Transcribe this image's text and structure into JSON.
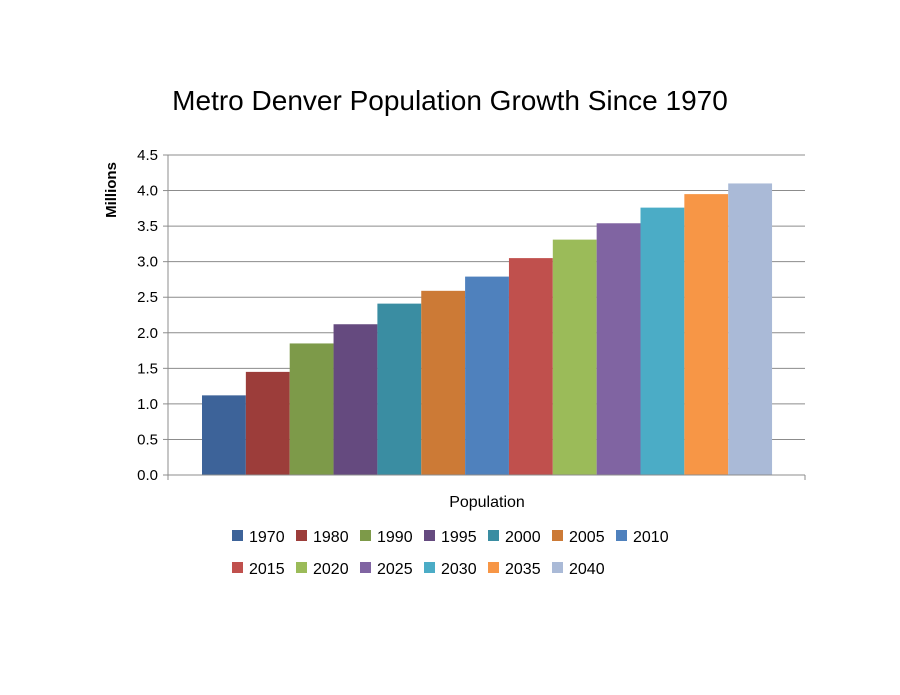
{
  "chart_data": {
    "type": "bar",
    "title": "Metro Denver Population Growth Since 1970",
    "xlabel": "Population",
    "ylabel": "Millions",
    "ylim": [
      0,
      4.5
    ],
    "yticks": [
      "0.0",
      "0.5",
      "1.0",
      "1.5",
      "2.0",
      "2.5",
      "3.0",
      "3.5",
      "4.0",
      "4.5"
    ],
    "grid": true,
    "legend_position": "bottom",
    "categories": [
      "Population"
    ],
    "series": [
      {
        "name": "1970",
        "values": [
          1.12
        ],
        "color": "#3d6399"
      },
      {
        "name": "1980",
        "values": [
          1.45
        ],
        "color": "#9c3d3a"
      },
      {
        "name": "1990",
        "values": [
          1.85
        ],
        "color": "#7d9a49"
      },
      {
        "name": "1995",
        "values": [
          2.12
        ],
        "color": "#654a7f"
      },
      {
        "name": "2000",
        "values": [
          2.41
        ],
        "color": "#3a8da2"
      },
      {
        "name": "2005",
        "values": [
          2.59
        ],
        "color": "#cc7a36"
      },
      {
        "name": "2010",
        "values": [
          2.79
        ],
        "color": "#4f81bd"
      },
      {
        "name": "2015",
        "values": [
          3.05
        ],
        "color": "#c0504d"
      },
      {
        "name": "2020",
        "values": [
          3.31
        ],
        "color": "#9bbb59"
      },
      {
        "name": "2025",
        "values": [
          3.54
        ],
        "color": "#8064a2"
      },
      {
        "name": "2030",
        "values": [
          3.76
        ],
        "color": "#4bacc6"
      },
      {
        "name": "2035",
        "values": [
          3.95
        ],
        "color": "#f79646"
      },
      {
        "name": "2040",
        "values": [
          4.1
        ],
        "color": "#aabad7"
      }
    ]
  }
}
